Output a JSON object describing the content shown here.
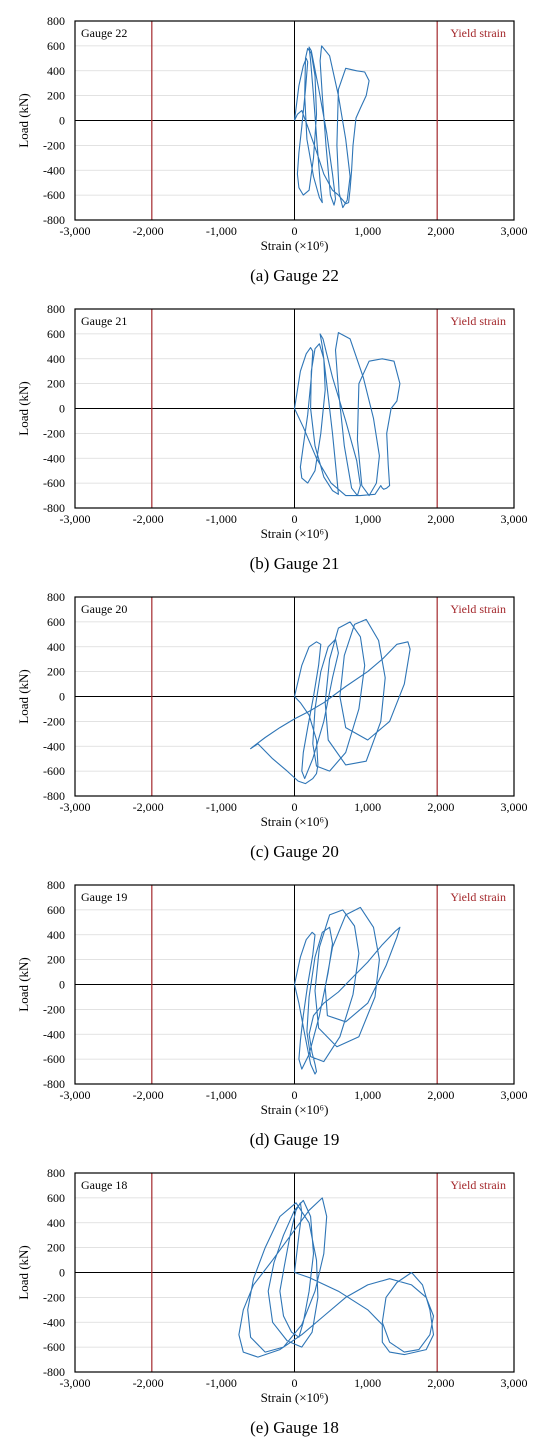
{
  "figure": {
    "yield_label": "Yield strain",
    "chart_data": [
      {
        "type": "line",
        "panel_label": "Gauge 22",
        "caption": "(a) Gauge 22",
        "xlabel": "Strain (×10⁶)",
        "ylabel": "Load (kN)",
        "xlim": [
          -3000,
          3000
        ],
        "ylim": [
          -800,
          800
        ],
        "xticks": [
          -3000,
          -2000,
          -1000,
          0,
          1000,
          2000,
          3000
        ],
        "yticks": [
          -800,
          -600,
          -400,
          -200,
          0,
          200,
          400,
          600,
          800
        ],
        "yield_strain": [
          -1950,
          1950
        ],
        "grid": "y-major",
        "series_color": "#2e75b6",
        "yield_color": "#a4282c",
        "series": [
          {
            "x": [
              0,
              60,
              120,
              160,
              180,
              150,
              100,
              60,
              40,
              60,
              120,
              200,
              260,
              300,
              280,
              230,
              180,
              150,
              140,
              170,
              260,
              340,
              380,
              360,
              310,
              260,
              220,
              200,
              230,
              330,
              440,
              520,
              560,
              540,
              490,
              430,
              380,
              350,
              370,
              480,
              600,
              700,
              760,
              720,
              660,
              610,
              580,
              600,
              700,
              850,
              960,
              1020,
              980,
              900,
              840,
              800,
              780,
              760,
              740,
              700,
              660,
              600,
              520,
              400,
              300,
              180,
              100,
              40,
              0
            ],
            "y": [
              0,
              280,
              440,
              500,
              470,
              250,
              -50,
              -260,
              -430,
              -540,
              -600,
              -560,
              -300,
              50,
              360,
              540,
              580,
              500,
              200,
              -150,
              -450,
              -620,
              -660,
              -560,
              -200,
              200,
              480,
              590,
              560,
              260,
              -100,
              -430,
              -630,
              -680,
              -600,
              -200,
              200,
              480,
              600,
              520,
              200,
              -150,
              -450,
              -640,
              -700,
              -580,
              -200,
              250,
              420,
              400,
              390,
              320,
              200,
              100,
              20,
              -200,
              -400,
              -550,
              -660,
              -670,
              -640,
              -600,
              -560,
              -430,
              -250,
              -50,
              80,
              50,
              0
            ]
          }
        ]
      },
      {
        "type": "line",
        "panel_label": "Gauge 21",
        "caption": "(b) Gauge 21",
        "xlabel": "Strain (×10⁶)",
        "ylabel": "Load (kN)",
        "xlim": [
          -3000,
          3000
        ],
        "ylim": [
          -800,
          800
        ],
        "xticks": [
          -3000,
          -2000,
          -1000,
          0,
          1000,
          2000,
          3000
        ],
        "yticks": [
          -800,
          -600,
          -400,
          -200,
          0,
          200,
          400,
          600,
          800
        ],
        "yield_strain": [
          -1950,
          1950
        ],
        "grid": "y-major",
        "series_color": "#2e75b6",
        "yield_color": "#a4282c",
        "series": [
          {
            "x": [
              0,
              80,
              160,
              220,
              250,
              230,
              180,
              120,
              80,
              100,
              180,
              280,
              360,
              420,
              400,
              340,
              280,
              230,
              220,
              280,
              400,
              520,
              600,
              580,
              520,
              440,
              380,
              350,
              390,
              520,
              700,
              850,
              900,
              860,
              780,
              680,
              600,
              560,
              600,
              760,
              940,
              1080,
              1160,
              1120,
              1020,
              920,
              860,
              880,
              1020,
              1200,
              1360,
              1440,
              1400,
              1320,
              1260,
              1280,
              1300,
              1260,
              1220,
              1200,
              1180,
              1100,
              900,
              700,
              500,
              300,
              120,
              0
            ],
            "y": [
              0,
              300,
              440,
              490,
              460,
              250,
              -50,
              -300,
              -470,
              -560,
              -600,
              -500,
              -200,
              150,
              400,
              520,
              480,
              300,
              0,
              -300,
              -550,
              -660,
              -690,
              -560,
              -200,
              200,
              500,
              600,
              560,
              250,
              -100,
              -420,
              -620,
              -700,
              -640,
              -300,
              150,
              470,
              610,
              560,
              250,
              -80,
              -380,
              -600,
              -700,
              -620,
              -250,
              200,
              380,
              400,
              380,
              200,
              60,
              0,
              -200,
              -450,
              -620,
              -640,
              -650,
              -640,
              -620,
              -690,
              -700,
              -700,
              -600,
              -400,
              -150,
              0
            ]
          }
        ]
      },
      {
        "type": "line",
        "panel_label": "Gauge 20",
        "caption": "(c) Gauge 20",
        "xlabel": "Strain (×10⁶)",
        "ylabel": "Load (kN)",
        "xlim": [
          -3000,
          3000
        ],
        "ylim": [
          -800,
          800
        ],
        "xticks": [
          -3000,
          -2000,
          -1000,
          0,
          1000,
          2000,
          3000
        ],
        "yticks": [
          -800,
          -600,
          -400,
          -200,
          0,
          200,
          400,
          600,
          800
        ],
        "yield_strain": [
          -1950,
          1950
        ],
        "grid": "y-major",
        "series_color": "#2e75b6",
        "yield_color": "#a4282c",
        "series": [
          {
            "x": [
              0,
              100,
              200,
              300,
              360,
              330,
              260,
              180,
              120,
              100,
              140,
              250,
              400,
              520,
              600,
              560,
              460,
              360,
              280,
              250,
              300,
              480,
              700,
              880,
              960,
              900,
              760,
              600,
              480,
              420,
              460,
              700,
              980,
              1180,
              1240,
              1150,
              980,
              820,
              680,
              620,
              700,
              1000,
              1300,
              1500,
              1580,
              1550,
              1400,
              1200,
              1000,
              700,
              400,
              200,
              0,
              -200,
              -400,
              -560,
              -600,
              -500,
              -300,
              -100,
              50,
              150,
              250,
              300,
              320,
              300,
              200,
              80,
              0
            ],
            "y": [
              0,
              250,
              400,
              440,
              420,
              250,
              0,
              -250,
              -450,
              -600,
              -660,
              -500,
              -200,
              150,
              350,
              460,
              400,
              200,
              -100,
              -380,
              -560,
              -600,
              -450,
              -100,
              250,
              480,
              600,
              550,
              300,
              -50,
              -350,
              -550,
              -520,
              -200,
              150,
              450,
              620,
              580,
              330,
              0,
              -250,
              -350,
              -200,
              100,
              380,
              440,
              420,
              300,
              200,
              80,
              -50,
              -120,
              -180,
              -250,
              -330,
              -400,
              -420,
              -380,
              -500,
              -600,
              -680,
              -700,
              -660,
              -620,
              -550,
              -350,
              -150,
              -50,
              0
            ]
          }
        ]
      },
      {
        "type": "line",
        "panel_label": "Gauge 19",
        "caption": "(d) Gauge 19",
        "xlabel": "Strain (×10⁶)",
        "ylabel": "Load (kN)",
        "xlim": [
          -3000,
          3000
        ],
        "ylim": [
          -800,
          800
        ],
        "xticks": [
          -3000,
          -2000,
          -1000,
          0,
          1000,
          2000,
          3000
        ],
        "yticks": [
          -800,
          -600,
          -400,
          -200,
          0,
          200,
          400,
          600,
          800
        ],
        "yield_strain": [
          -1950,
          1950
        ],
        "grid": "y-major",
        "series_color": "#2e75b6",
        "yield_color": "#a4282c",
        "series": [
          {
            "x": [
              0,
              80,
              160,
              240,
              280,
              250,
              180,
              120,
              80,
              60,
              100,
              200,
              340,
              460,
              520,
              480,
              380,
              280,
              200,
              170,
              220,
              400,
              620,
              800,
              880,
              820,
              660,
              480,
              340,
              280,
              330,
              580,
              880,
              1100,
              1160,
              1080,
              900,
              700,
              520,
              420,
              450,
              700,
              1000,
              1250,
              1400,
              1440,
              1380,
              1200,
              1000,
              800,
              600,
              400,
              260,
              200,
              240,
              280,
              300,
              280,
              220,
              140,
              60,
              0
            ],
            "y": [
              0,
              220,
              360,
              420,
              400,
              240,
              0,
              -250,
              -450,
              -600,
              -680,
              -560,
              -250,
              100,
              330,
              460,
              420,
              220,
              -100,
              -380,
              -580,
              -620,
              -420,
              -80,
              250,
              470,
              600,
              560,
              300,
              -50,
              -350,
              -500,
              -420,
              -100,
              200,
              460,
              620,
              560,
              300,
              -20,
              -250,
              -300,
              -150,
              150,
              380,
              460,
              430,
              320,
              180,
              60,
              -60,
              -150,
              -250,
              -400,
              -550,
              -640,
              -700,
              -720,
              -640,
              -400,
              -150,
              0
            ]
          }
        ]
      },
      {
        "type": "line",
        "panel_label": "Gauge 18",
        "caption": "(e) Gauge 18",
        "xlabel": "Strain (×10⁶)",
        "ylabel": "Load (kN)",
        "xlim": [
          -3000,
          3000
        ],
        "ylim": [
          -800,
          800
        ],
        "xticks": [
          -3000,
          -2000,
          -1000,
          0,
          1000,
          2000,
          3000
        ],
        "yticks": [
          -800,
          -600,
          -400,
          -200,
          0,
          200,
          400,
          600,
          800
        ],
        "yield_strain": [
          -1950,
          1950
        ],
        "grid": "y-major",
        "series_color": "#2e75b6",
        "yield_color": "#a4282c",
        "series": [
          {
            "x": [
              0,
              60,
              100,
              80,
              20,
              -60,
              -140,
              -200,
              -150,
              -40,
              60,
              120,
              200,
              260,
              220,
              120,
              0,
              -150,
              -280,
              -360,
              -300,
              -100,
              100,
              240,
              320,
              300,
              200,
              20,
              -200,
              -400,
              -560,
              -640,
              -600,
              -400,
              -150,
              100,
              280,
              400,
              440,
              380,
              200,
              -50,
              -300,
              -560,
              -700,
              -760,
              -700,
              -500,
              -200,
              100,
              400,
              700,
              1000,
              1300,
              1600,
              1800,
              1900,
              1850,
              1700,
              1500,
              1300,
              1200,
              1250,
              1400,
              1600,
              1750,
              1850,
              1900,
              1800,
              1500,
              1300,
              1200,
              1200,
              1000,
              600,
              200,
              0
            ],
            "y": [
              0,
              300,
              480,
              560,
              500,
              300,
              50,
              -150,
              -350,
              -480,
              -520,
              -400,
              -150,
              150,
              450,
              580,
              500,
              300,
              80,
              -150,
              -400,
              -550,
              -600,
              -480,
              -200,
              100,
              400,
              560,
              450,
              200,
              -50,
              -300,
              -520,
              -640,
              -600,
              -420,
              -150,
              150,
              450,
              600,
              500,
              300,
              100,
              -100,
              -300,
              -500,
              -640,
              -680,
              -620,
              -500,
              -350,
              -200,
              -100,
              -50,
              -100,
              -200,
              -350,
              -500,
              -620,
              -640,
              -560,
              -400,
              -200,
              -80,
              0,
              -100,
              -300,
              -500,
              -620,
              -660,
              -640,
              -560,
              -420,
              -300,
              -150,
              -40,
              0
            ]
          }
        ]
      }
    ]
  }
}
